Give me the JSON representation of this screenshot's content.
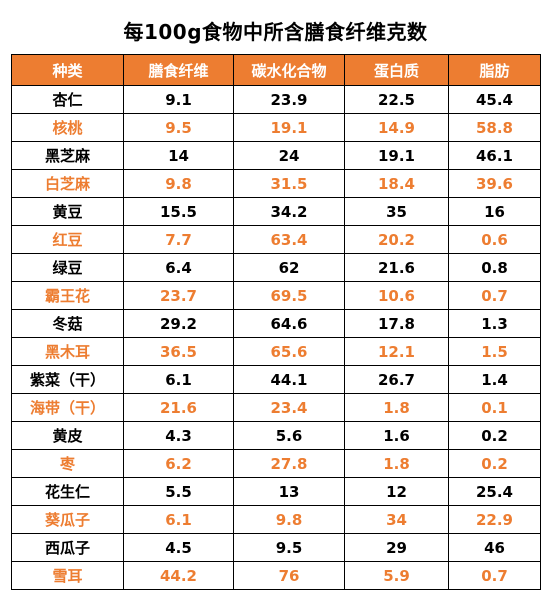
{
  "title": "每100g食物中所含膳食纤维克数",
  "colors": {
    "header_bg": "#ed7d31",
    "header_text": "#ffffff",
    "row_dark": "#000000",
    "row_accent": "#ed7d31"
  },
  "table": {
    "headers": [
      "种类",
      "膳食纤维",
      "碳水化合物",
      "蛋白质",
      "脂肪"
    ],
    "rows": [
      [
        "杏仁",
        "9.1",
        "23.9",
        "22.5",
        "45.4"
      ],
      [
        "核桃",
        "9.5",
        "19.1",
        "14.9",
        "58.8"
      ],
      [
        "黑芝麻",
        "14",
        "24",
        "19.1",
        "46.1"
      ],
      [
        "白芝麻",
        "9.8",
        "31.5",
        "18.4",
        "39.6"
      ],
      [
        "黄豆",
        "15.5",
        "34.2",
        "35",
        "16"
      ],
      [
        "红豆",
        "7.7",
        "63.4",
        "20.2",
        "0.6"
      ],
      [
        "绿豆",
        "6.4",
        "62",
        "21.6",
        "0.8"
      ],
      [
        "霸王花",
        "23.7",
        "69.5",
        "10.6",
        "0.7"
      ],
      [
        "冬菇",
        "29.2",
        "64.6",
        "17.8",
        "1.3"
      ],
      [
        "黑木耳",
        "36.5",
        "65.6",
        "12.1",
        "1.5"
      ],
      [
        "紫菜（干）",
        "6.1",
        "44.1",
        "26.7",
        "1.4"
      ],
      [
        "海带（干）",
        "21.6",
        "23.4",
        "1.8",
        "0.1"
      ],
      [
        "黄皮",
        "4.3",
        "5.6",
        "1.6",
        "0.2"
      ],
      [
        "枣",
        "6.2",
        "27.8",
        "1.8",
        "0.2"
      ],
      [
        "花生仁",
        "5.5",
        "13",
        "12",
        "25.4"
      ],
      [
        "葵瓜子",
        "6.1",
        "9.8",
        "34",
        "22.9"
      ],
      [
        "西瓜子",
        "4.5",
        "9.5",
        "29",
        "46"
      ],
      [
        "雪耳",
        "44.2",
        "76",
        "5.9",
        "0.7"
      ]
    ]
  }
}
